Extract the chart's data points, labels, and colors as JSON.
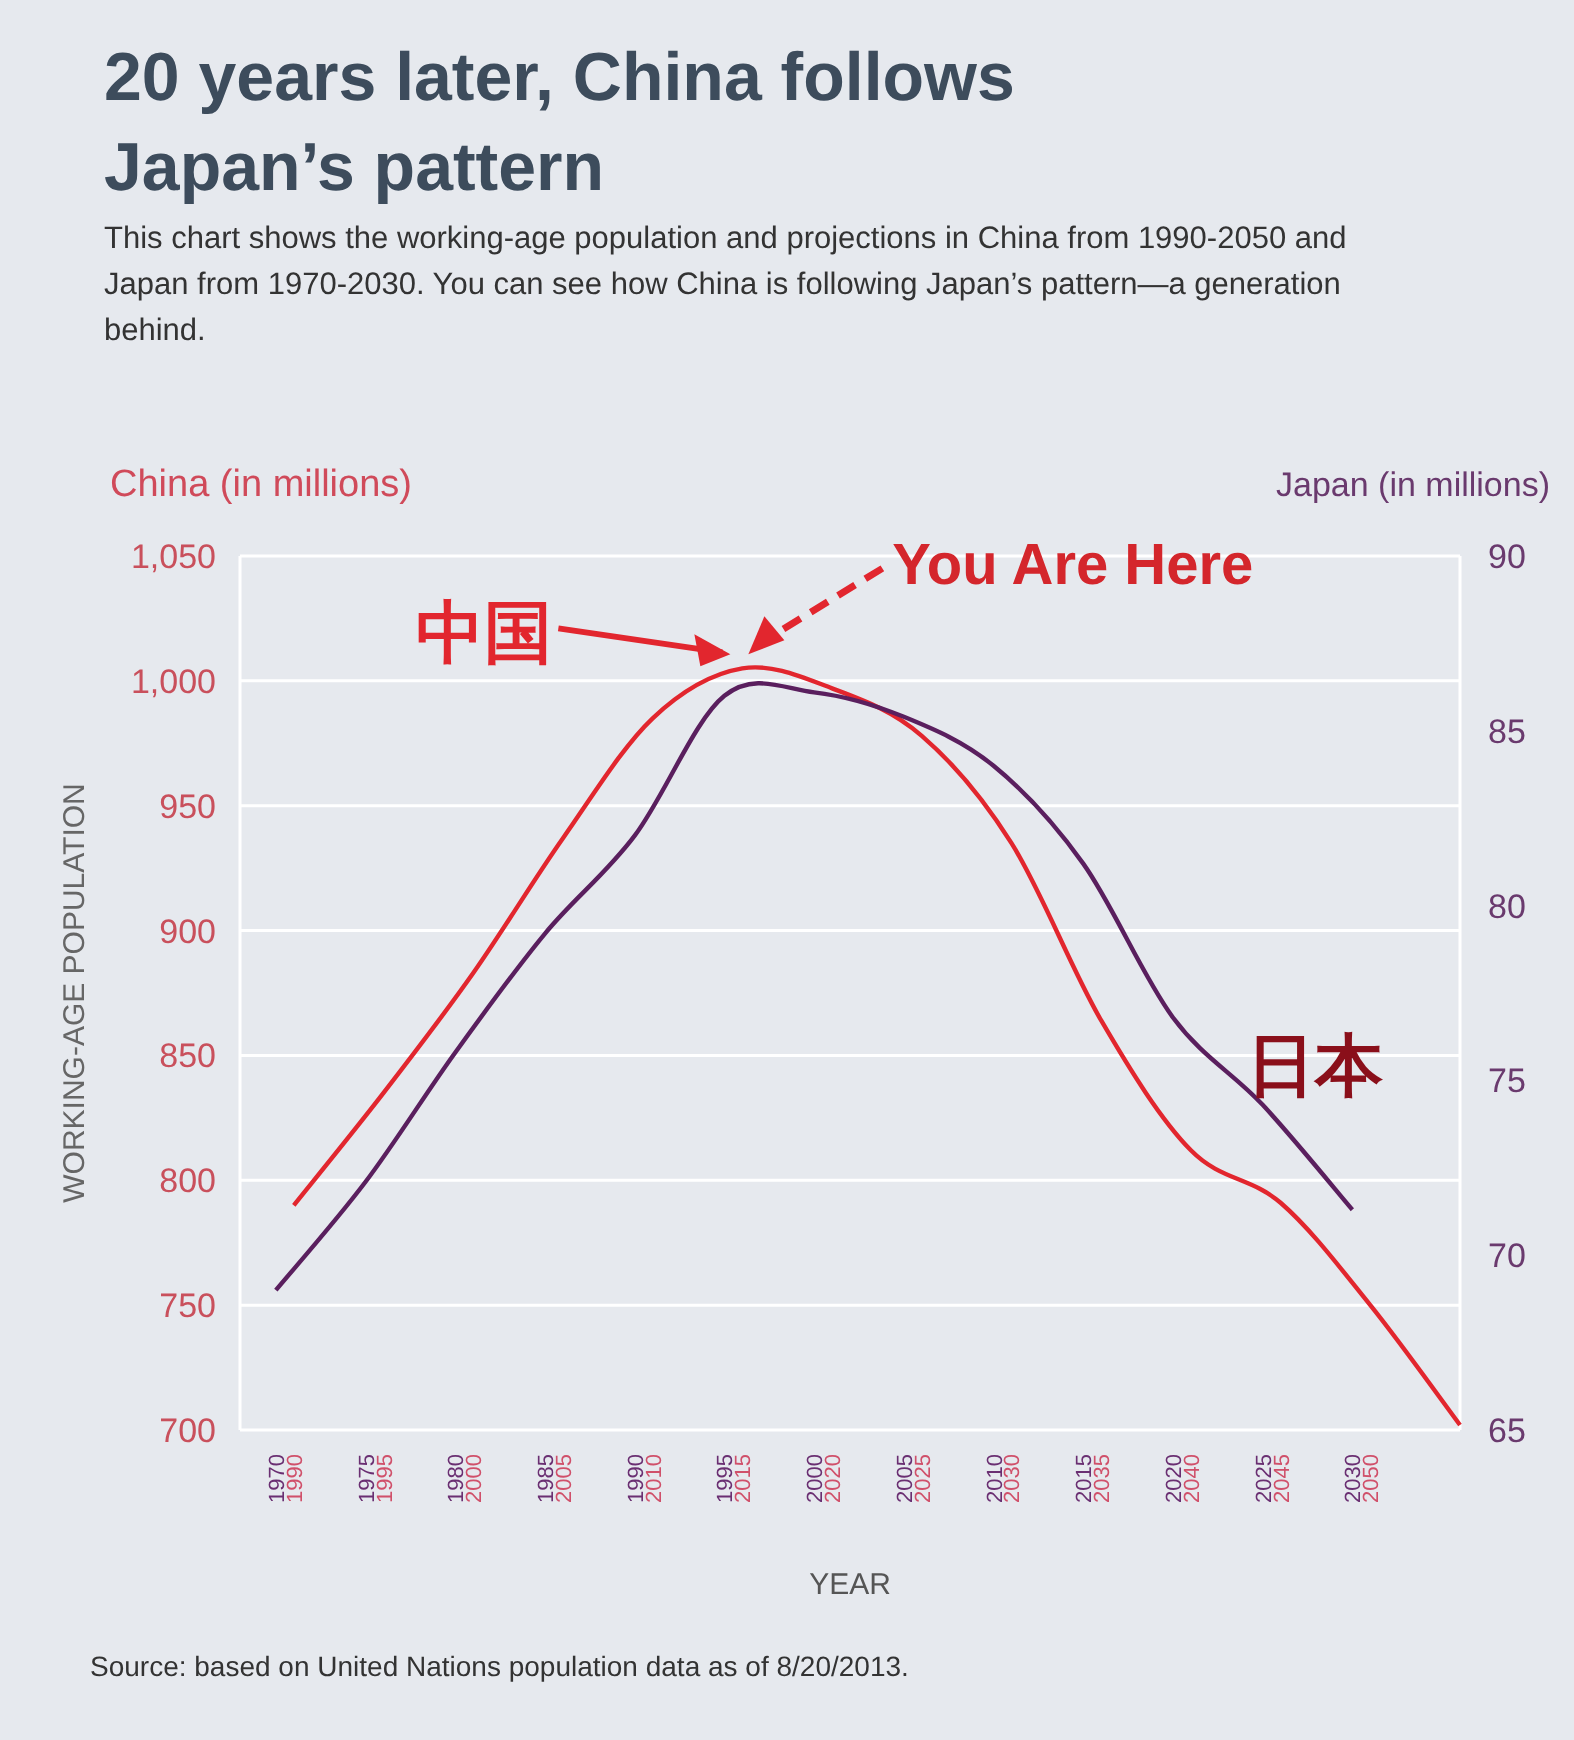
{
  "chart_data": [
    {
      "type": "line",
      "title": "20 years later, China follows Japan’s pattern",
      "subtitle": "This chart shows the working-age population and projections in China from 1990-2050 and Japan from 1970-2030. You can see how China is following Japan’s pattern—a generation behind.",
      "xlabel": "YEAR",
      "ylabel": "China (in millions)",
      "x": [
        1990,
        1995,
        2000,
        2005,
        2010,
        2015,
        2020,
        2025,
        2030,
        2035,
        2040,
        2045,
        2050,
        2055
      ],
      "series": [
        {
          "name": "中国",
          "color": "#e2262e",
          "values": [
            790,
            835,
            883,
            937,
            985,
            1005,
            997,
            978,
            935,
            864,
            812,
            791,
            750,
            702
          ]
        }
      ],
      "xlim": [
        1987,
        2055
      ],
      "xticks": [
        1990,
        1995,
        2000,
        2005,
        2010,
        2015,
        2020,
        2025,
        2030,
        2035,
        2040,
        2045,
        2050
      ],
      "ylim": [
        700,
        1050
      ],
      "yticks": [
        {
          "value": 700,
          "label": "700"
        },
        {
          "value": 750,
          "label": "750"
        },
        {
          "value": 800,
          "label": "800"
        },
        {
          "value": 850,
          "label": "850"
        },
        {
          "value": 900,
          "label": "900"
        },
        {
          "value": 950,
          "label": "950"
        },
        {
          "value": 1000,
          "label": "1,000"
        },
        {
          "value": 1050,
          "label": "1,050"
        }
      ],
      "grid": "y",
      "annotations": [
        "WORKING-AGE POPULATION",
        {
          "text": "You Are Here",
          "x": 2015,
          "y": 1005
        },
        "Source: based on United Nations population data as of 8/20/2013."
      ]
    },
    {
      "type": "line",
      "ylabel": "Japan (in millions)",
      "x": [
        1970,
        1975,
        1980,
        1985,
        1990,
        1995,
        2000,
        2005,
        2010,
        2015,
        2020,
        2025,
        2030
      ],
      "series": [
        {
          "name": "日本",
          "color": "#5a1f5e",
          "values": [
            69,
            72.1,
            75.8,
            79.2,
            82,
            86,
            86.1,
            85.4,
            84,
            81.2,
            76.8,
            74.3,
            71.3
          ]
        }
      ],
      "xlim": [
        1968,
        2036
      ],
      "xticks": [
        1970,
        1975,
        1980,
        1985,
        1990,
        1995,
        2000,
        2005,
        2010,
        2015,
        2020,
        2025,
        2030
      ],
      "ylim": [
        65,
        90
      ],
      "yticks": [
        65,
        70,
        75,
        80,
        85,
        90
      ]
    }
  ]
}
